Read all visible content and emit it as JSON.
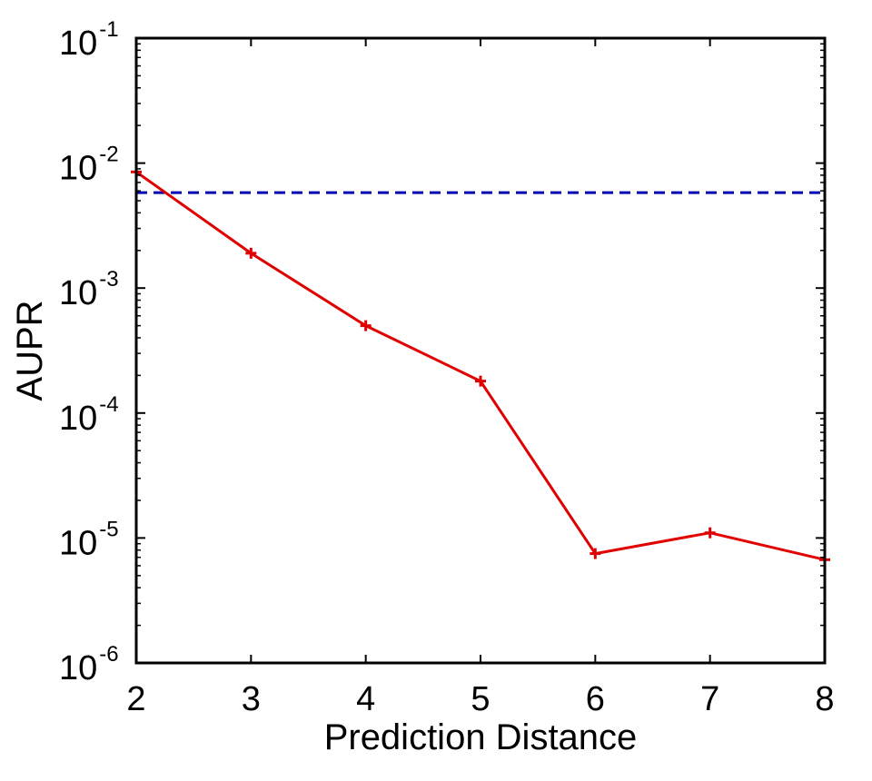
{
  "chart_data": {
    "type": "line",
    "title": "",
    "xlabel": "Prediction Distance",
    "ylabel": "AUPR",
    "xlim": [
      2,
      8
    ],
    "ylim": [
      1e-06,
      0.1
    ],
    "yscale": "log",
    "grid": false,
    "legend": "none",
    "x_ticks": [
      "2",
      "3",
      "4",
      "5",
      "6",
      "7",
      "8"
    ],
    "y_ticks": [
      {
        "base": "10",
        "exp": "-1",
        "value": 0.1
      },
      {
        "base": "10",
        "exp": "-2",
        "value": 0.01
      },
      {
        "base": "10",
        "exp": "-3",
        "value": 0.001
      },
      {
        "base": "10",
        "exp": "-4",
        "value": 0.0001
      },
      {
        "base": "10",
        "exp": "-5",
        "value": 1e-05
      },
      {
        "base": "10",
        "exp": "-6",
        "value": 1e-06
      }
    ],
    "series": [
      {
        "color": "#e00000",
        "line_style": "solid",
        "marker": "plus",
        "x": [
          2,
          3,
          4,
          5,
          6,
          7,
          8
        ],
        "y": [
          0.0085,
          0.0019,
          0.0005,
          0.00018,
          7.5e-06,
          1.1e-05,
          6.7e-06
        ]
      }
    ],
    "reference_lines": [
      {
        "orientation": "horizontal",
        "y": 0.0058,
        "color": "#0000b0",
        "line_style": "dashed"
      }
    ]
  }
}
